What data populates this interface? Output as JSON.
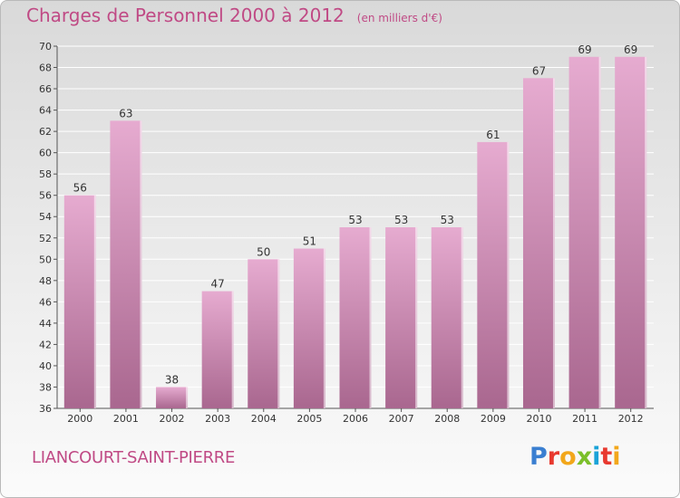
{
  "header": {
    "title": "Charges de Personnel 2000 à 2012",
    "unit": "(en milliers d'€)"
  },
  "footer": {
    "commune": "LIANCOURT-SAINT-PIERRE",
    "logo": "Proxiti",
    "logo_letter_colors": [
      "#3a7fd1",
      "#e8392f",
      "#f2a71b",
      "#7bbf2a",
      "#1aa3d8",
      "#e8392f",
      "#f2a71b"
    ]
  },
  "colors": {
    "bar_top": "#e6abd0",
    "bar_bottom": "#a9678f",
    "accent": "#c04a85",
    "grid": "#ffffff"
  },
  "chart_data": {
    "type": "bar",
    "title": "Charges de Personnel 2000 à 2012",
    "subtitle": "(en milliers d'€)",
    "categories": [
      "2000",
      "2001",
      "2002",
      "2003",
      "2004",
      "2005",
      "2006",
      "2007",
      "2008",
      "2009",
      "2010",
      "2011",
      "2012"
    ],
    "values": [
      56,
      63,
      38,
      47,
      50,
      51,
      53,
      53,
      53,
      61,
      67,
      69,
      69
    ],
    "ylim": [
      36,
      70
    ],
    "yticks": [
      36,
      38,
      40,
      42,
      44,
      46,
      48,
      50,
      52,
      54,
      56,
      58,
      60,
      62,
      64,
      66,
      68,
      70
    ],
    "grid": true,
    "data_labels": true
  }
}
